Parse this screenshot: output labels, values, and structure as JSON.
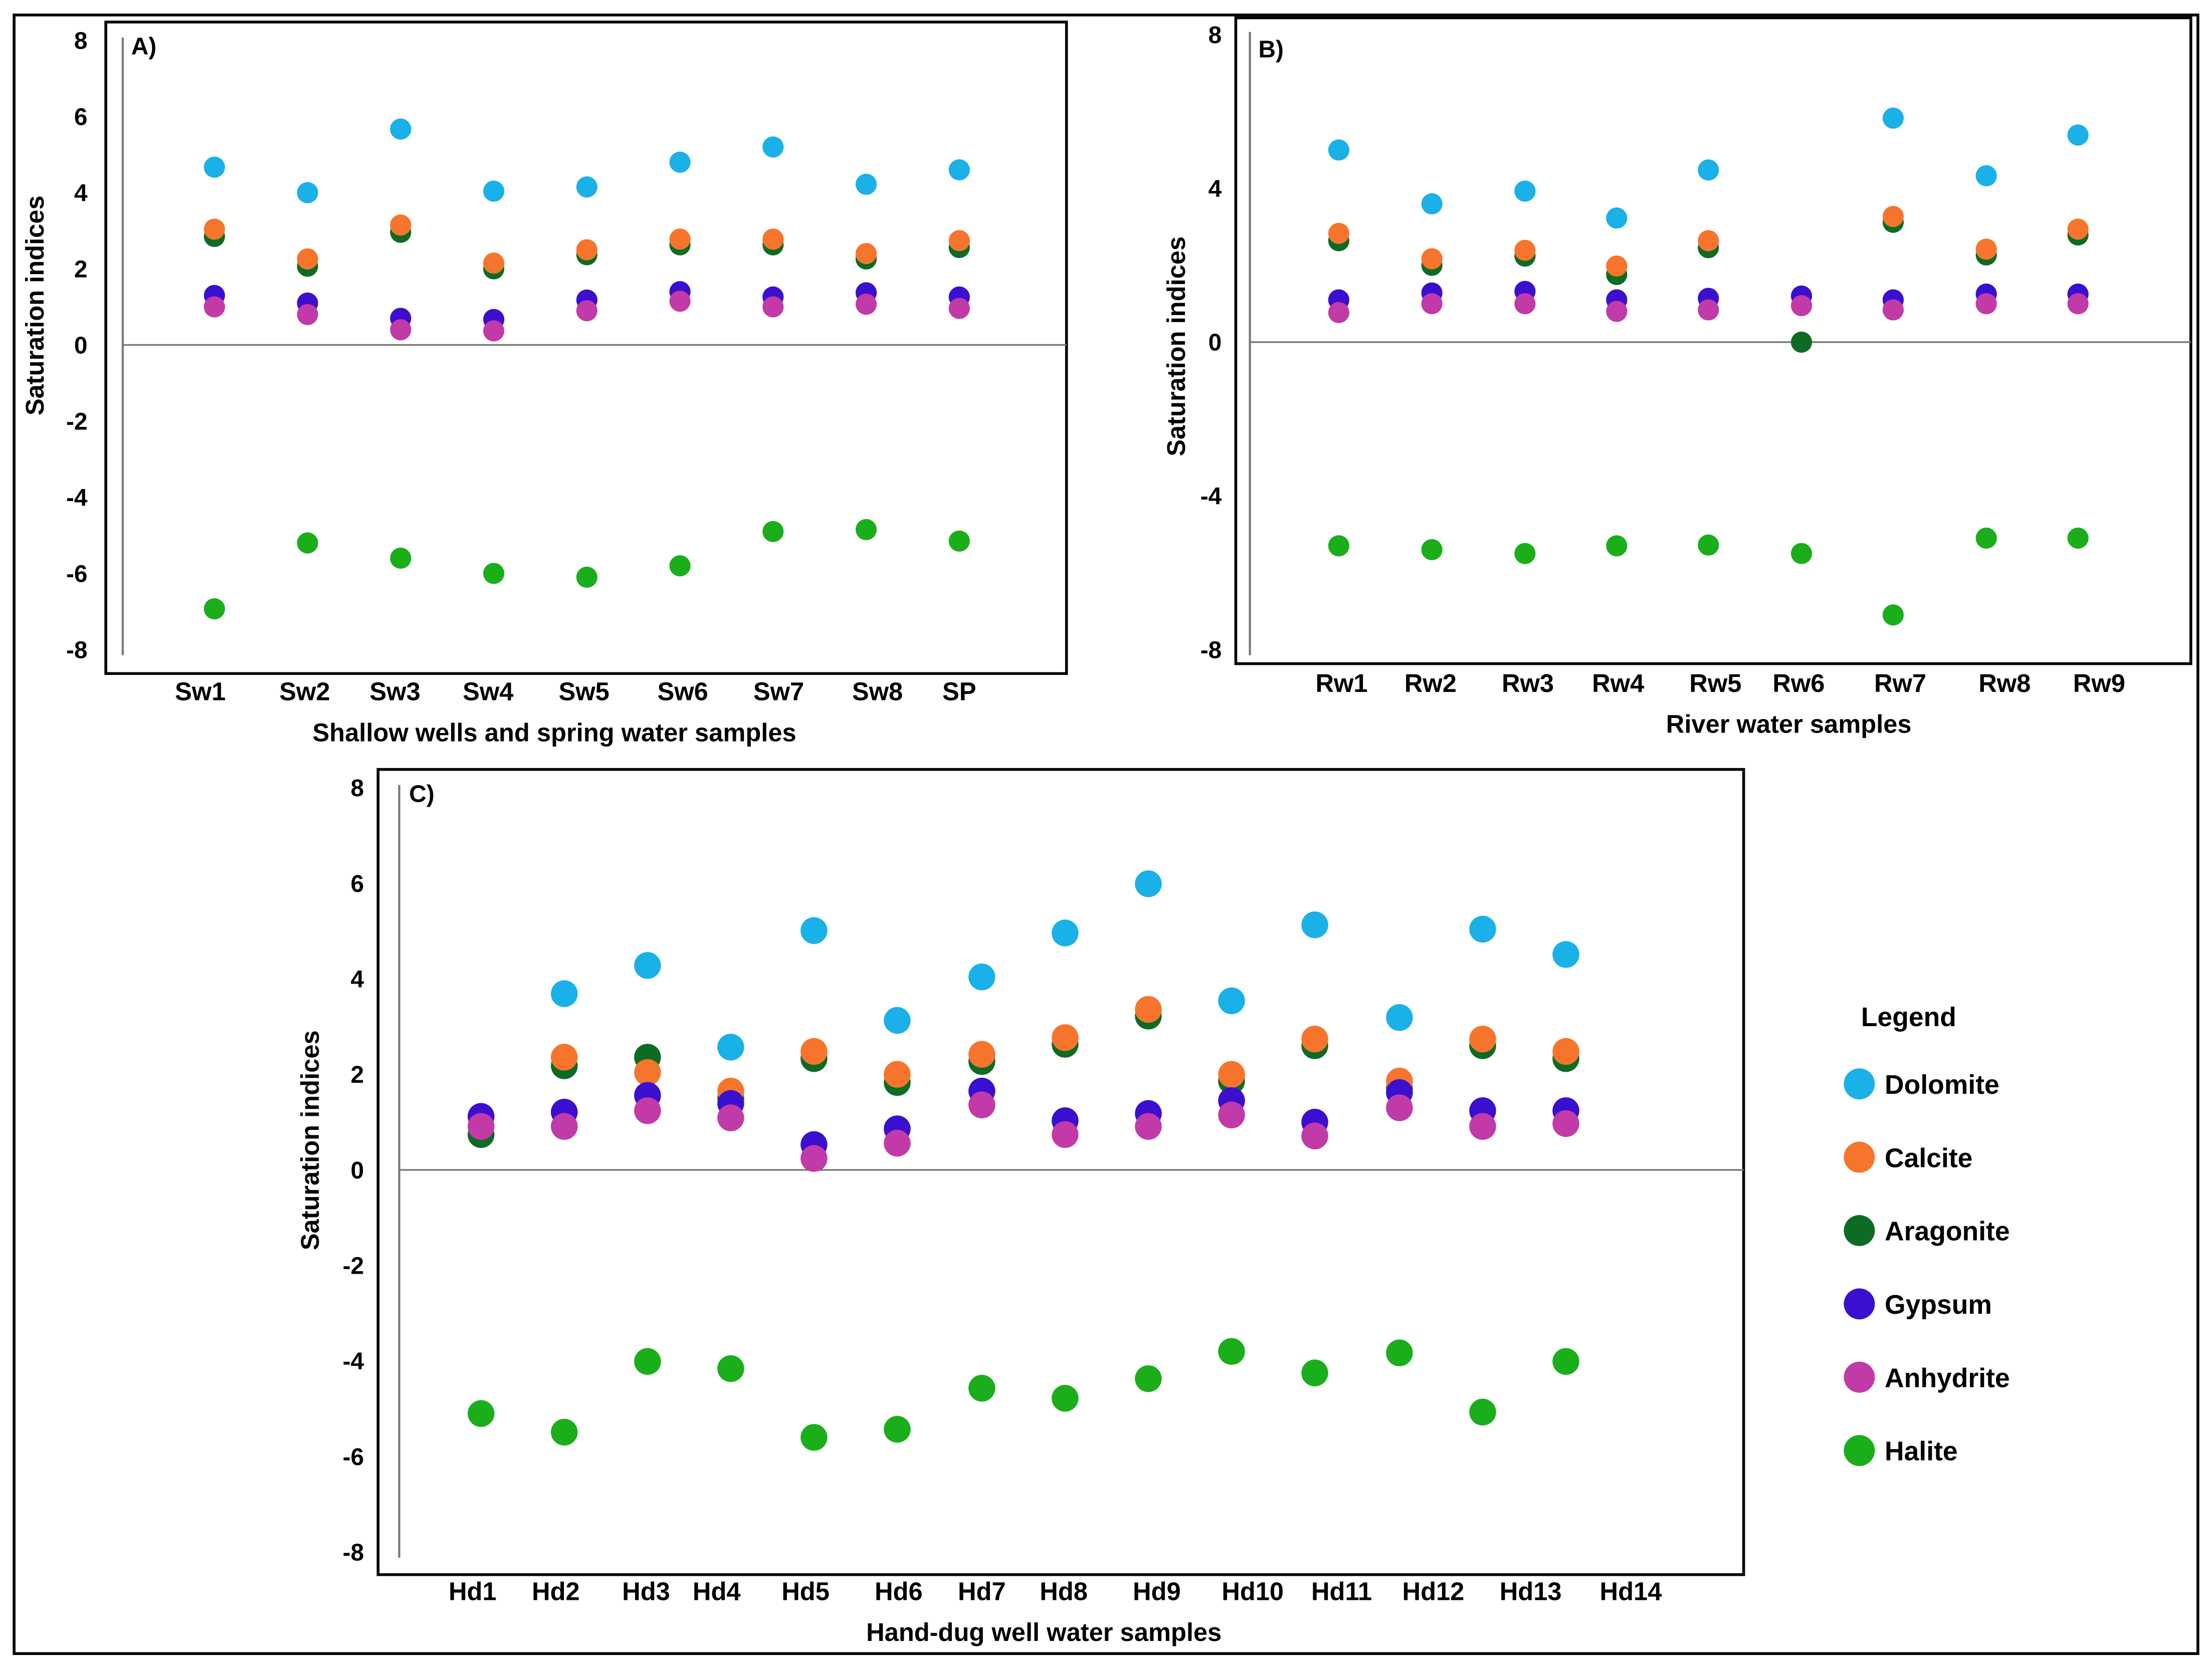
{
  "colors": {
    "Dolomite": "#1ab0e8",
    "Calcite": "#f7742d",
    "Aragonite": "#0d6b24",
    "Gypsum": "#3a0fd0",
    "Anhydrite": "#c13aa8",
    "Halite": "#1aae1a"
  },
  "legend": {
    "title": "Legend",
    "items": [
      "Dolomite",
      "Calcite",
      "Aragonite",
      "Gypsum",
      "Anhydrite",
      "Halite"
    ]
  },
  "chart_data": [
    {
      "type": "scatter",
      "panel_label": "A)",
      "xlabel": "Shallow wells and spring water samples",
      "ylabel": "Saturation indices",
      "ylim": [
        -8,
        8
      ],
      "yticks": [
        "8",
        "6",
        "4",
        "2",
        "0",
        "-2",
        "-4",
        "-6",
        "-8"
      ],
      "categories": [
        "Sw1",
        "Sw2",
        "Sw3",
        "Sw4",
        "Sw5",
        "Sw6",
        "Sw7",
        "Sw8",
        "SP"
      ],
      "series": [
        {
          "name": "Dolomite",
          "values": [
            4.67,
            4.0,
            5.67,
            4.04,
            4.15,
            4.8,
            5.2,
            4.22,
            4.6
          ]
        },
        {
          "name": "Calcite",
          "values": [
            3.04,
            2.26,
            3.15,
            2.15,
            2.5,
            2.78,
            2.78,
            2.4,
            2.74
          ]
        },
        {
          "name": "Aragonite",
          "values": [
            2.85,
            2.07,
            2.96,
            2.0,
            2.37,
            2.63,
            2.63,
            2.26,
            2.56
          ]
        },
        {
          "name": "Gypsum",
          "values": [
            1.3,
            1.1,
            0.7,
            0.67,
            1.18,
            1.4,
            1.26,
            1.37,
            1.26
          ]
        },
        {
          "name": "Anhydrite",
          "values": [
            1.0,
            0.8,
            0.4,
            0.37,
            0.9,
            1.15,
            1.0,
            1.07,
            0.96
          ]
        },
        {
          "name": "Halite",
          "values": [
            -6.93,
            -5.2,
            -5.6,
            -6.0,
            -6.1,
            -5.8,
            -4.9,
            -4.85,
            -5.15
          ]
        }
      ],
      "grid": false,
      "zero_line": true
    },
    {
      "type": "scatter",
      "panel_label": "B)",
      "xlabel": "River water samples",
      "ylabel": "Saturation indices",
      "ylim": [
        -8,
        8
      ],
      "yticks": [
        "8",
        "4",
        "0",
        "-4",
        "-8"
      ],
      "categories": [
        "Rw1",
        "Rw2",
        "Rw3",
        "Rw4",
        "Rw5",
        "Rw6",
        "Rw7",
        "Rw8",
        "Rw9"
      ],
      "series": [
        {
          "name": "Dolomite",
          "values": [
            5.0,
            3.6,
            3.93,
            3.23,
            4.48,
            null,
            5.83,
            4.33,
            5.39
          ]
        },
        {
          "name": "Calcite",
          "values": [
            2.83,
            2.17,
            2.39,
            1.98,
            2.64,
            null,
            3.27,
            2.42,
            2.94
          ]
        },
        {
          "name": "Aragonite",
          "values": [
            2.64,
            2.0,
            2.24,
            1.76,
            2.46,
            0.0,
            3.12,
            2.27,
            2.79
          ]
        },
        {
          "name": "Gypsum",
          "values": [
            1.1,
            1.28,
            1.32,
            1.1,
            1.14,
            1.2,
            1.1,
            1.25,
            1.25
          ]
        },
        {
          "name": "Anhydrite",
          "values": [
            0.77,
            1.0,
            1.0,
            0.8,
            0.84,
            0.95,
            0.84,
            1.0,
            1.0
          ]
        },
        {
          "name": "Halite",
          "values": [
            -5.3,
            -5.4,
            -5.5,
            -5.3,
            -5.28,
            -5.5,
            -7.1,
            -5.1,
            -5.1
          ]
        }
      ],
      "grid": false,
      "zero_line": true
    },
    {
      "type": "scatter",
      "panel_label": "C)",
      "xlabel": "Hand-dug well water samples",
      "ylabel": "Saturation indices",
      "ylim": [
        -8,
        8
      ],
      "yticks": [
        "8",
        "6",
        "4",
        "2",
        "0",
        "-2",
        "-4",
        "-6",
        "-8"
      ],
      "categories": [
        "Hd1",
        "Hd2",
        "Hd3",
        "Hd4",
        "Hd5",
        "Hd6",
        "Hd7",
        "Hd8",
        "Hd9",
        "Hd10",
        "Hd11",
        "Hd12",
        "Hd13",
        "Hd14"
      ],
      "series": [
        {
          "name": "Dolomite",
          "values": [
            null,
            3.69,
            4.28,
            2.57,
            5.01,
            3.13,
            4.04,
            4.96,
            5.99,
            3.54,
            5.13,
            3.19,
            5.04,
            4.51
          ]
        },
        {
          "name": "Calcite",
          "values": [
            null,
            2.36,
            2.04,
            1.65,
            2.48,
            2.0,
            2.42,
            2.77,
            3.36,
            2.0,
            2.74,
            1.86,
            2.74,
            2.48
          ]
        },
        {
          "name": "Aragonite",
          "values": [
            0.74,
            2.18,
            2.36,
            1.5,
            2.33,
            1.83,
            2.27,
            2.63,
            3.22,
            1.86,
            2.6,
            1.71,
            2.6,
            2.33
          ]
        },
        {
          "name": "Gypsum",
          "values": [
            1.12,
            1.21,
            1.56,
            1.39,
            0.53,
            0.86,
            1.65,
            1.03,
            1.18,
            1.45,
            1.0,
            1.62,
            1.24,
            1.24
          ]
        },
        {
          "name": "Anhydrite",
          "values": [
            0.91,
            0.91,
            1.24,
            1.09,
            0.24,
            0.56,
            1.36,
            0.74,
            0.91,
            1.15,
            0.71,
            1.3,
            0.91,
            0.97
          ]
        },
        {
          "name": "Halite",
          "values": [
            -5.1,
            -5.49,
            -4.01,
            -4.16,
            -5.6,
            -5.43,
            -4.57,
            -4.78,
            -4.37,
            -3.8,
            -4.25,
            -3.83,
            -5.07,
            -4.01
          ]
        }
      ],
      "grid": false,
      "zero_line": true
    }
  ]
}
